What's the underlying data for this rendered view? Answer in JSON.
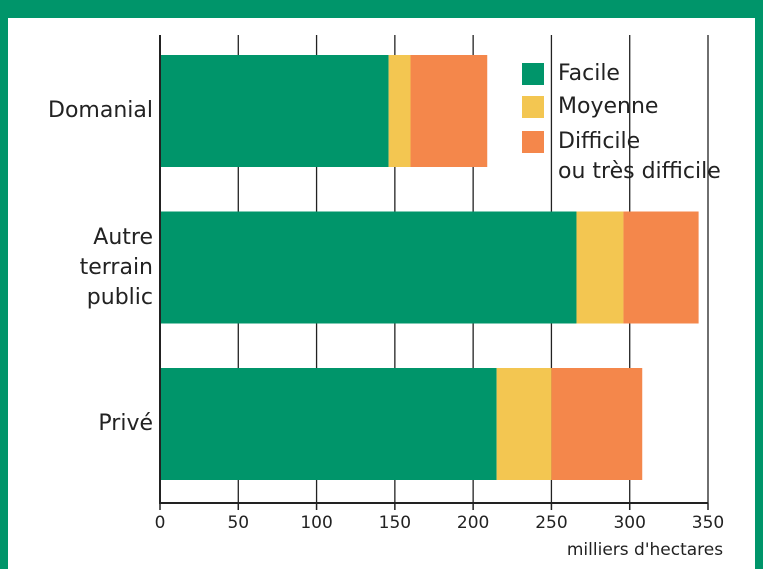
{
  "chart_data": {
    "type": "stacked_barh",
    "categories": [
      "Domanial",
      "Autre terrain public",
      "Privé"
    ],
    "series": [
      {
        "name": "Facile",
        "color": "#00956a",
        "values": [
          146,
          266,
          215
        ]
      },
      {
        "name": "Moyenne",
        "color": "#f3c651",
        "values": [
          14,
          30,
          35
        ]
      },
      {
        "name": "Difficile\nou très difficile",
        "color": "#f4874b",
        "values": [
          49,
          48,
          58
        ]
      }
    ],
    "xlabel": "milliers d'hectares",
    "xlim": [
      0,
      350
    ],
    "xticks": [
      0,
      50,
      100,
      150,
      200,
      250,
      300,
      350
    ],
    "grid": true
  }
}
